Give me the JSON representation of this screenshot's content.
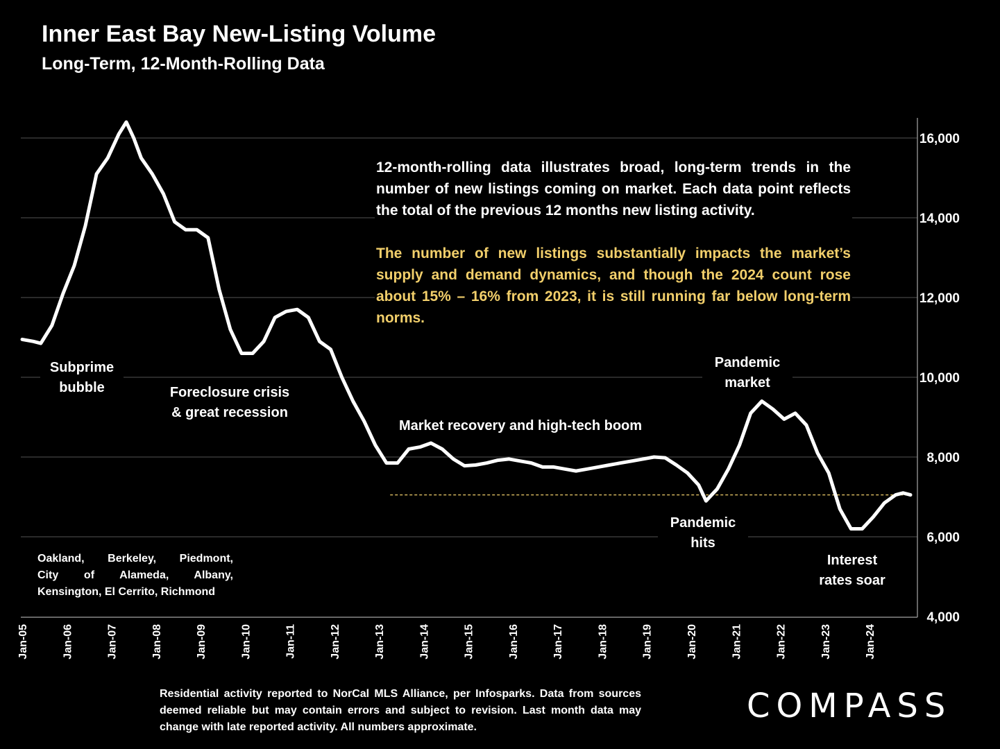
{
  "title": "Inner East Bay New-Listing Volume",
  "subtitle": "Long-Term, 12-Month-Rolling Data",
  "note_1": "12-month-rolling data illustrates broad, long-term trends in the number of new listings coming on market. Each data point reflects the total of the previous 12 months new listing activity.",
  "note_2": "The number of new listings substantially impacts the market’s supply and demand dynamics, and though the 2024 count rose about 15% – 16% from 2023, it is still running far below long-term norms.",
  "cities": [
    "Oakland, Berkeley, Piedmont,",
    "City of Alameda, Albany,",
    "Kensington, El Cerrito, Richmond"
  ],
  "footer": "Residential activity reported to NorCal MLS Alliance, per Infosparks. Data from sources deemed reliable but may contain errors and subject to revision. Last month data may change with late reported activity. All numbers approximate.",
  "logo": "COMPASS",
  "colors": {
    "background": "#000000",
    "line": "#ffffff",
    "highlight_text": "#f2cf6b",
    "reference_line": "#f2cf6b",
    "grid": "#555555"
  },
  "chart_data": {
    "type": "line",
    "title": "Inner East Bay New-Listing Volume",
    "subtitle": "Long-Term, 12-Month-Rolling Data",
    "y_axis_side": "right",
    "ylim": [
      4000,
      16000
    ],
    "yticks": [
      4000,
      6000,
      8000,
      10000,
      12000,
      14000,
      16000
    ],
    "ytick_labels": [
      "4,000",
      "6,000",
      "8,000",
      "10,000",
      "12,000",
      "14,000",
      "16,000"
    ],
    "xticks": [
      "Jan-05",
      "Jan-06",
      "Jan-07",
      "Jan-08",
      "Jan-09",
      "Jan-10",
      "Jan-11",
      "Jan-12",
      "Jan-13",
      "Jan-14",
      "Jan-15",
      "Jan-16",
      "Jan-17",
      "Jan-18",
      "Jan-19",
      "Jan-20",
      "Jan-21",
      "Jan-22",
      "Jan-23",
      "Jan-24"
    ],
    "grid": "horizontal",
    "reference_line": {
      "y": 7050,
      "from": "2013-04",
      "to": "2024-12",
      "style": "dashed"
    },
    "series": [
      {
        "points": [
          [
            "2005-01",
            10950
          ],
          [
            "2005-04",
            10900
          ],
          [
            "2005-06",
            10850
          ],
          [
            "2005-09",
            11300
          ],
          [
            "2005-12",
            12100
          ],
          [
            "2006-03",
            12800
          ],
          [
            "2006-06",
            13800
          ],
          [
            "2006-09",
            15100
          ],
          [
            "2006-12",
            15500
          ],
          [
            "2007-03",
            16100
          ],
          [
            "2007-05",
            16400
          ],
          [
            "2007-07",
            16000
          ],
          [
            "2007-09",
            15500
          ],
          [
            "2007-12",
            15100
          ],
          [
            "2008-03",
            14600
          ],
          [
            "2008-06",
            13900
          ],
          [
            "2008-09",
            13700
          ],
          [
            "2008-12",
            13700
          ],
          [
            "2009-03",
            13500
          ],
          [
            "2009-06",
            12200
          ],
          [
            "2009-09",
            11200
          ],
          [
            "2009-12",
            10600
          ],
          [
            "2010-03",
            10600
          ],
          [
            "2010-06",
            10900
          ],
          [
            "2010-09",
            11500
          ],
          [
            "2010-12",
            11650
          ],
          [
            "2011-03",
            11700
          ],
          [
            "2011-06",
            11500
          ],
          [
            "2011-09",
            10900
          ],
          [
            "2011-12",
            10700
          ],
          [
            "2012-03",
            10000
          ],
          [
            "2012-06",
            9400
          ],
          [
            "2012-09",
            8900
          ],
          [
            "2012-12",
            8300
          ],
          [
            "2013-03",
            7850
          ],
          [
            "2013-06",
            7850
          ],
          [
            "2013-09",
            8200
          ],
          [
            "2013-12",
            8250
          ],
          [
            "2014-03",
            8350
          ],
          [
            "2014-06",
            8200
          ],
          [
            "2014-09",
            7950
          ],
          [
            "2014-12",
            7780
          ],
          [
            "2015-03",
            7800
          ],
          [
            "2015-06",
            7850
          ],
          [
            "2015-09",
            7920
          ],
          [
            "2015-12",
            7950
          ],
          [
            "2016-03",
            7900
          ],
          [
            "2016-06",
            7850
          ],
          [
            "2016-09",
            7750
          ],
          [
            "2016-12",
            7750
          ],
          [
            "2017-03",
            7700
          ],
          [
            "2017-06",
            7650
          ],
          [
            "2017-09",
            7700
          ],
          [
            "2017-12",
            7750
          ],
          [
            "2018-03",
            7800
          ],
          [
            "2018-06",
            7850
          ],
          [
            "2018-09",
            7900
          ],
          [
            "2018-12",
            7950
          ],
          [
            "2019-03",
            8000
          ],
          [
            "2019-06",
            7980
          ],
          [
            "2019-09",
            7800
          ],
          [
            "2019-12",
            7600
          ],
          [
            "2020-03",
            7300
          ],
          [
            "2020-05",
            6900
          ],
          [
            "2020-08",
            7200
          ],
          [
            "2020-11",
            7700
          ],
          [
            "2021-02",
            8300
          ],
          [
            "2021-05",
            9100
          ],
          [
            "2021-08",
            9400
          ],
          [
            "2021-11",
            9200
          ],
          [
            "2022-02",
            8950
          ],
          [
            "2022-05",
            9100
          ],
          [
            "2022-08",
            8800
          ],
          [
            "2022-11",
            8100
          ],
          [
            "2023-02",
            7600
          ],
          [
            "2023-05",
            6700
          ],
          [
            "2023-08",
            6200
          ],
          [
            "2023-11",
            6200
          ],
          [
            "2024-02",
            6500
          ],
          [
            "2024-05",
            6850
          ],
          [
            "2024-08",
            7050
          ],
          [
            "2024-10",
            7100
          ],
          [
            "2024-12",
            7050
          ]
        ]
      }
    ],
    "annotations": [
      {
        "lines": [
          "Subprime",
          "bubble"
        ]
      },
      {
        "lines": [
          "Foreclosure crisis",
          "& great recession"
        ]
      },
      {
        "lines": [
          "Market recovery and high-tech boom"
        ]
      },
      {
        "lines": [
          "Pandemic",
          "market"
        ]
      },
      {
        "lines": [
          "Pandemic",
          "hits"
        ]
      },
      {
        "lines": [
          "Interest",
          "rates soar"
        ]
      }
    ]
  }
}
